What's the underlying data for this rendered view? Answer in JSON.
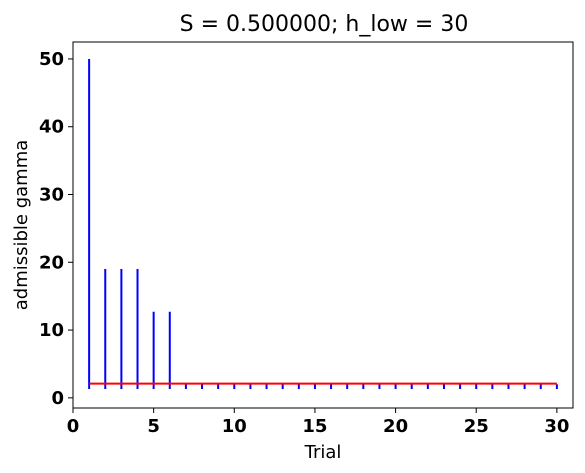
{
  "chart_data": {
    "type": "bar",
    "title": "S = 0.500000; h_low = 30",
    "xlabel": "Trial",
    "ylabel": "admissible gamma",
    "xlim": [
      0,
      31
    ],
    "ylim": [
      -1.5,
      52.5
    ],
    "xticks": [
      0,
      5,
      10,
      15,
      20,
      25,
      30
    ],
    "yticks": [
      0,
      10,
      20,
      30,
      40,
      50
    ],
    "colors": {
      "stems": "#0000ff",
      "reference_line": "#ff0000"
    },
    "stem_base": 1.3,
    "series": [
      {
        "name": "admissible gamma",
        "x": [
          1,
          2,
          3,
          4,
          5,
          6,
          7,
          8,
          9,
          10,
          11,
          12,
          13,
          14,
          15,
          16,
          17,
          18,
          19,
          20,
          21,
          22,
          23,
          24,
          25,
          26,
          27,
          28,
          29,
          30
        ],
        "values": [
          50,
          19,
          19,
          19,
          12.7,
          12.7,
          2,
          2,
          2,
          2,
          2,
          2,
          2,
          2,
          2,
          2,
          2,
          2,
          2,
          2,
          2,
          2,
          2,
          2,
          2,
          2,
          2,
          2,
          2,
          2
        ]
      }
    ],
    "reference_line": {
      "y": 2.1,
      "x_range": [
        1,
        30
      ]
    }
  }
}
